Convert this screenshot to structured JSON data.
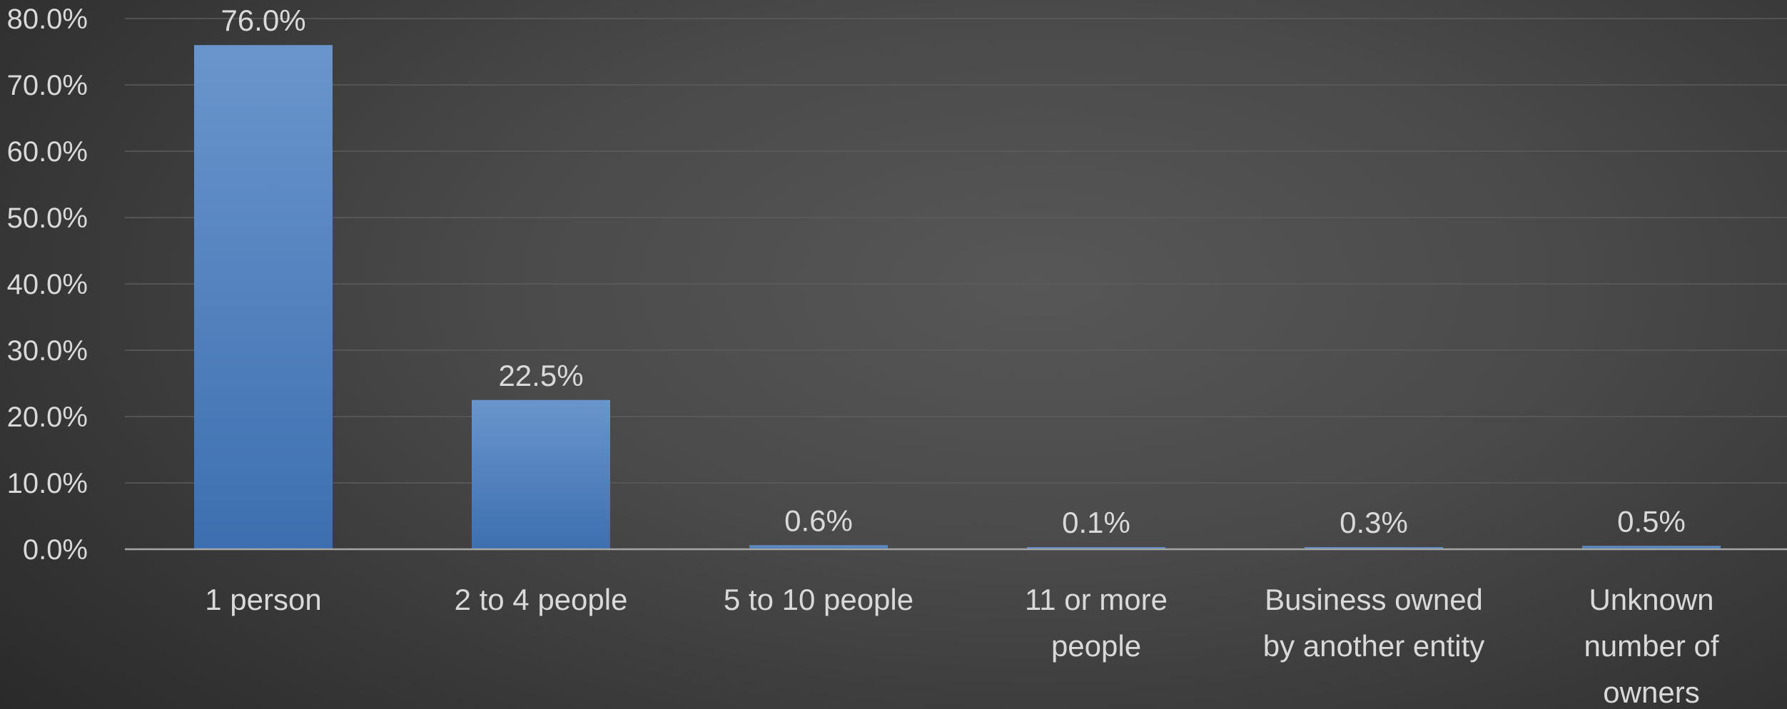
{
  "chart_data": {
    "type": "bar",
    "title": "",
    "xlabel": "",
    "ylabel": "",
    "categories": [
      [
        "1 person"
      ],
      [
        "2 to 4 people"
      ],
      [
        "5 to 10 people"
      ],
      [
        "11 or more",
        "people"
      ],
      [
        "Business owned",
        "by another entity"
      ],
      [
        "Unknown",
        "number of",
        "owners"
      ]
    ],
    "values": [
      76.0,
      22.5,
      0.6,
      0.1,
      0.3,
      0.5
    ],
    "data_labels": [
      "76.0%",
      "22.5%",
      "0.6%",
      "0.1%",
      "0.3%",
      "0.5%"
    ],
    "y_ticks": [
      "0.0%",
      "10.0%",
      "20.0%",
      "30.0%",
      "40.0%",
      "50.0%",
      "60.0%",
      "70.0%",
      "80.0%"
    ],
    "y_tick_values": [
      0,
      10,
      20,
      30,
      40,
      50,
      60,
      70,
      80
    ],
    "ylim": [
      0,
      80
    ],
    "grid": true,
    "legend": "none",
    "colors": {
      "bar_top": "#6a95cc",
      "bar_bottom": "#3d6fb0",
      "text": "#d9d9d9",
      "gridline": "#5c5c5c",
      "axis": "#a6a6a6"
    }
  }
}
